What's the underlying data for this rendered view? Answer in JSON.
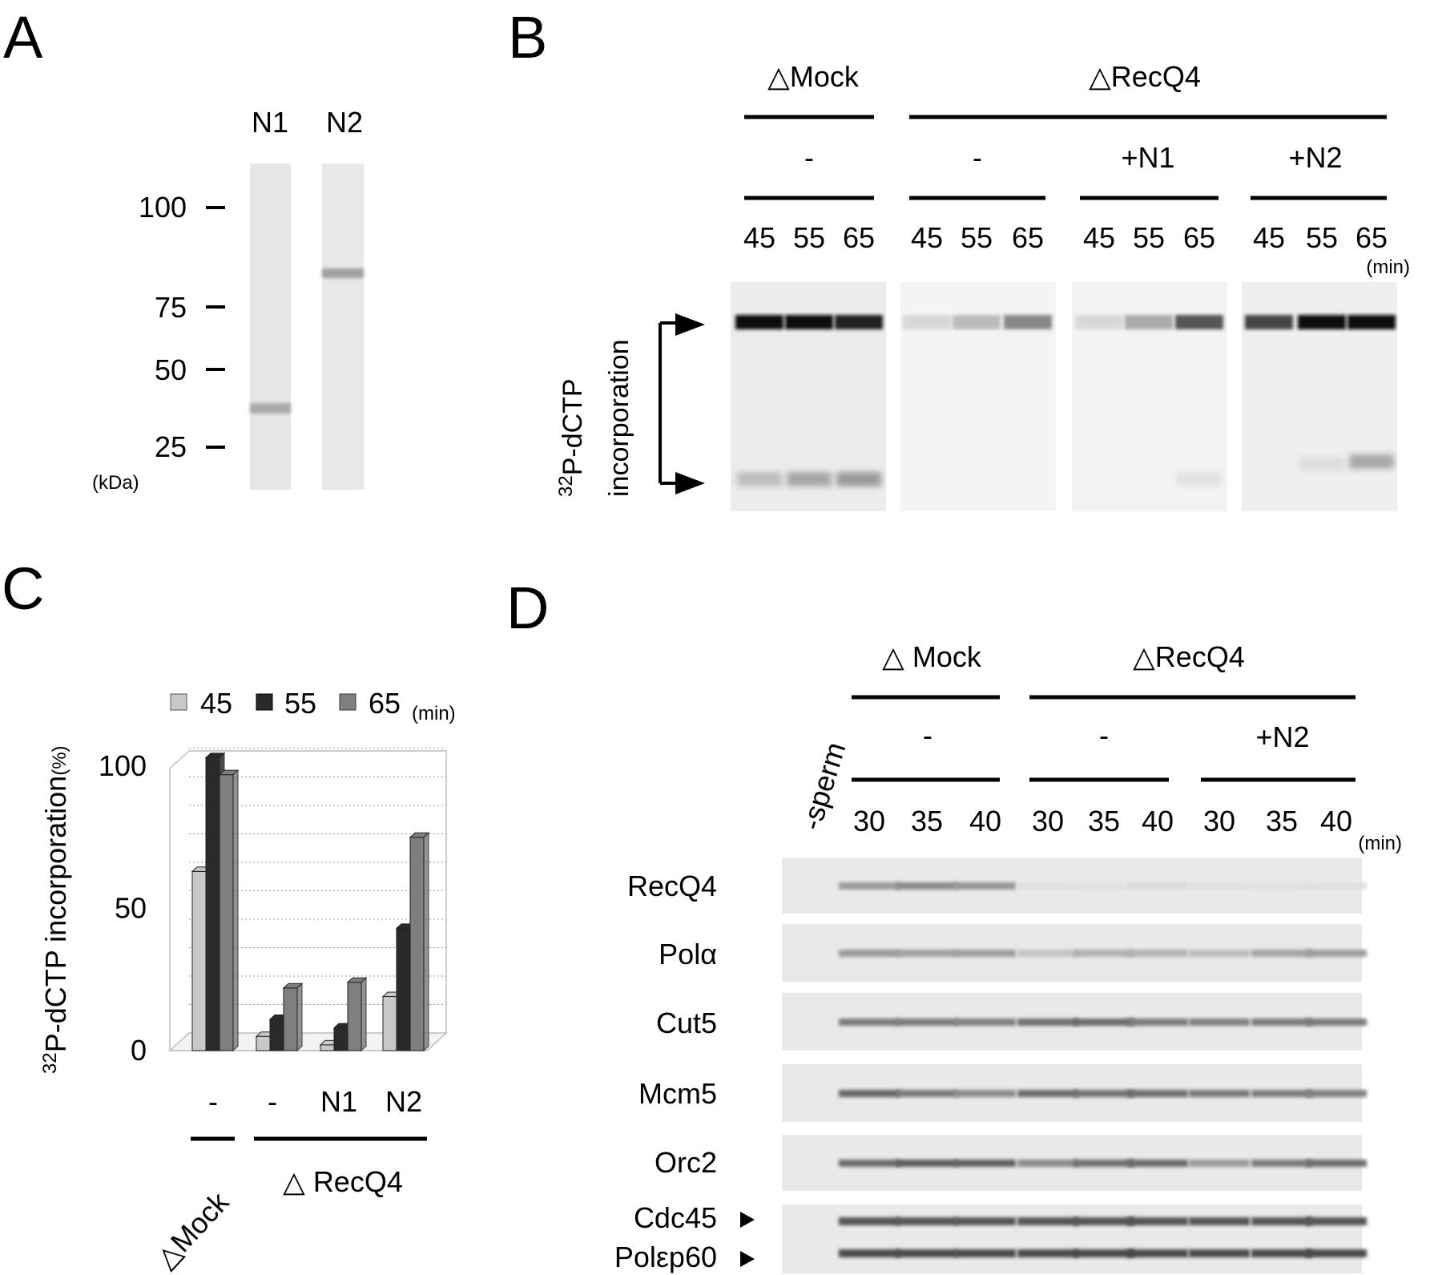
{
  "panel_labels": {
    "a": "A",
    "b": "B",
    "c": "C",
    "d": "D"
  },
  "panel_a": {
    "lanes": [
      "N1",
      "N2"
    ],
    "markers": [
      "100",
      "75",
      "50",
      "25"
    ],
    "unit": "(kDa)"
  },
  "panel_b": {
    "group_mock": "△Mock",
    "group_recq4": "△RecQ4",
    "conditions": [
      "-",
      "-",
      "+N1",
      "+N2"
    ],
    "times": [
      "45",
      "55",
      "65",
      "45",
      "55",
      "65",
      "45",
      "55",
      "65",
      "45",
      "55",
      "65"
    ],
    "unit": "(min)",
    "ylabel_sup": "32",
    "ylabel_line1": "P-dCTP",
    "ylabel_line2": "incorporation"
  },
  "panel_c": {
    "legend": [
      "45",
      "55",
      "65"
    ],
    "legend_unit": "(min)",
    "ylabel_sup": "32",
    "ylabel": "P-dCTP incorporation",
    "ylabel_unit": "(%)",
    "yticks": [
      "0",
      "50",
      "100"
    ],
    "categories": [
      "-",
      "-",
      "N1",
      "N2"
    ],
    "group_mock": "△Mock",
    "group_recq4": "△ RecQ4"
  },
  "chart_data": {
    "type": "bar",
    "categories": [
      "-",
      "-",
      "N1",
      "N2"
    ],
    "series": [
      {
        "name": "45",
        "values": [
          63,
          5,
          2,
          19
        ]
      },
      {
        "name": "55",
        "values": [
          103,
          11,
          8,
          43
        ]
      },
      {
        "name": "65",
        "values": [
          97,
          22,
          24,
          75
        ]
      }
    ],
    "series_colors": [
      "#c8c8c8",
      "#2a2a2a",
      "#7f7f7f"
    ],
    "ylabel": "32P-dCTP incorporation(%)",
    "ylim": [
      0,
      100
    ],
    "yticks": [
      0,
      50,
      100
    ],
    "grid": true,
    "legend": "top"
  },
  "panel_d": {
    "group_mock": "△ Mock",
    "group_recq4": "△RecQ4",
    "sperm": "-sperm",
    "conditions": [
      "-",
      "-",
      "+N2"
    ],
    "times": [
      "30",
      "35",
      "40",
      "30",
      "35",
      "40",
      "30",
      "35",
      "40"
    ],
    "unit": "(min)",
    "rows": [
      "RecQ4",
      "Polα",
      "Cut5",
      "Mcm5",
      "Orc2",
      "Cdc45",
      "Polεp60"
    ]
  }
}
